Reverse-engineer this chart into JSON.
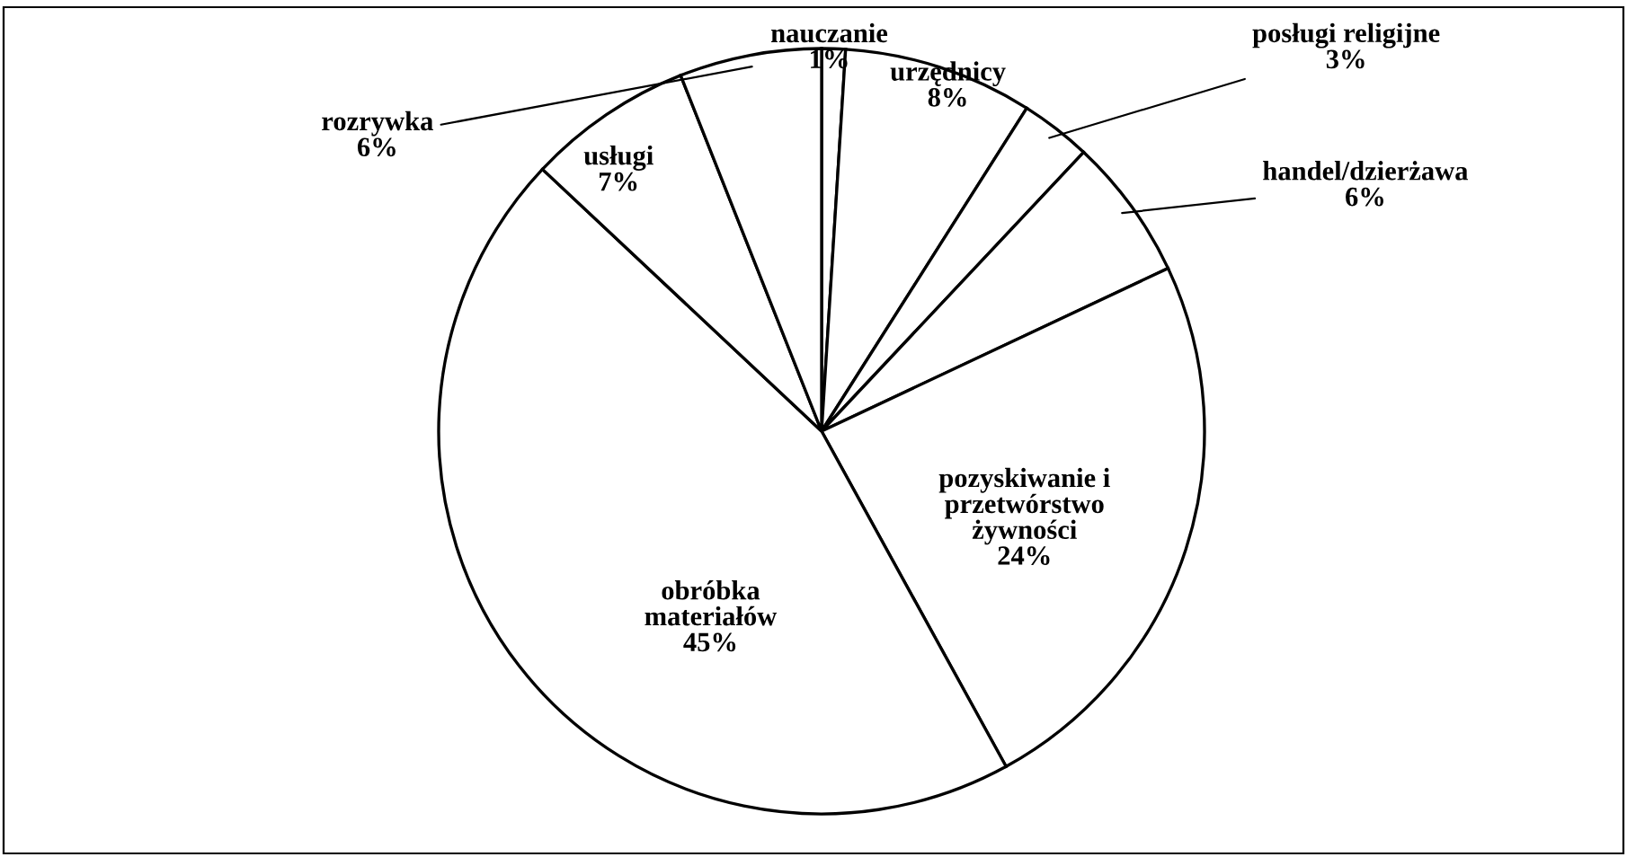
{
  "chart_data": {
    "type": "pie",
    "categories": [
      "nauczanie",
      "urzędnicy",
      "posługi religijne",
      "handel/dzierżawa",
      "pozyskiwanie i\nprzetwórstwo\nżywności",
      "obróbka\nmateriałów",
      "usługi",
      "rozrywka"
    ],
    "values": [
      1,
      8,
      3,
      6,
      24,
      45,
      7,
      6
    ],
    "colors": [
      "#ffffff",
      "#ffffff",
      "#ffffff",
      "#ffffff",
      "#ffffff",
      "#ffffff",
      "#ffffff",
      "#ffffff"
    ],
    "value_labels": [
      "1%",
      "8%",
      "3%",
      "6%",
      "24%",
      "45%",
      "7%",
      "6%"
    ]
  }
}
